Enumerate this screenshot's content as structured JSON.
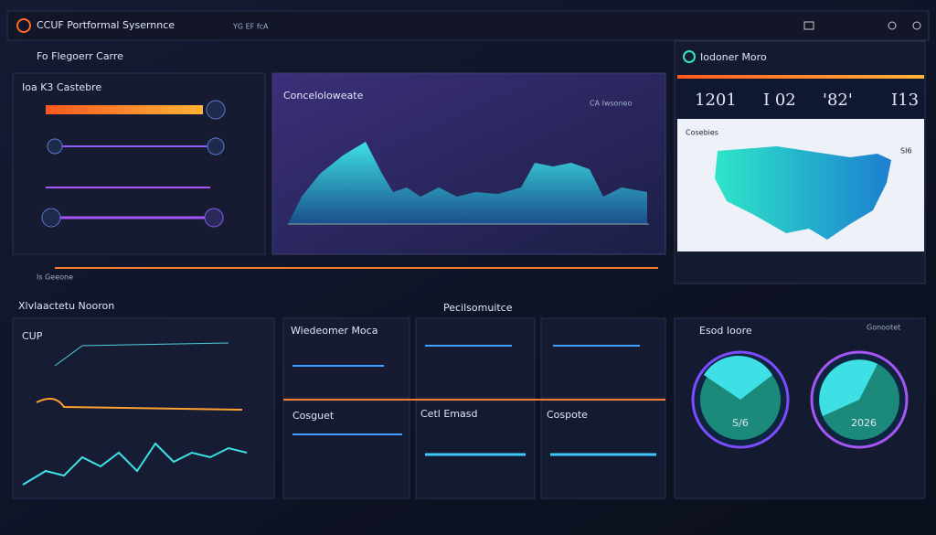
{
  "header": {
    "title": "CCUF Portformal Sysernnce",
    "subtitle": "YG EF fcA"
  },
  "sections": {
    "top": "Fo Flegoerr Carre",
    "divider": "Is Geeone",
    "bottom_left": "Xlvlaactetu Nooron",
    "bottom_mid": "Pecilsomuitce"
  },
  "panels": {
    "bars": {
      "title": "Ioa K3 Castebre"
    },
    "area": {
      "title": "Conceloloweate",
      "badge": "CA Iwsoneo"
    },
    "map": {
      "title": "Iodoner Moro",
      "stats": [
        "1201",
        "I 02",
        "'82'",
        "I13"
      ],
      "label": "Cosebies",
      "marker": "SI6"
    },
    "cpu": {
      "title": "CUP"
    },
    "cards": [
      "Wiedeomer Moca",
      "Cosguet",
      "Cetl Emasd",
      "Cospote"
    ],
    "gauges": {
      "title": "Esod Ioore",
      "legend": "Gonootet",
      "left": "S/6",
      "right": "2026"
    }
  }
}
